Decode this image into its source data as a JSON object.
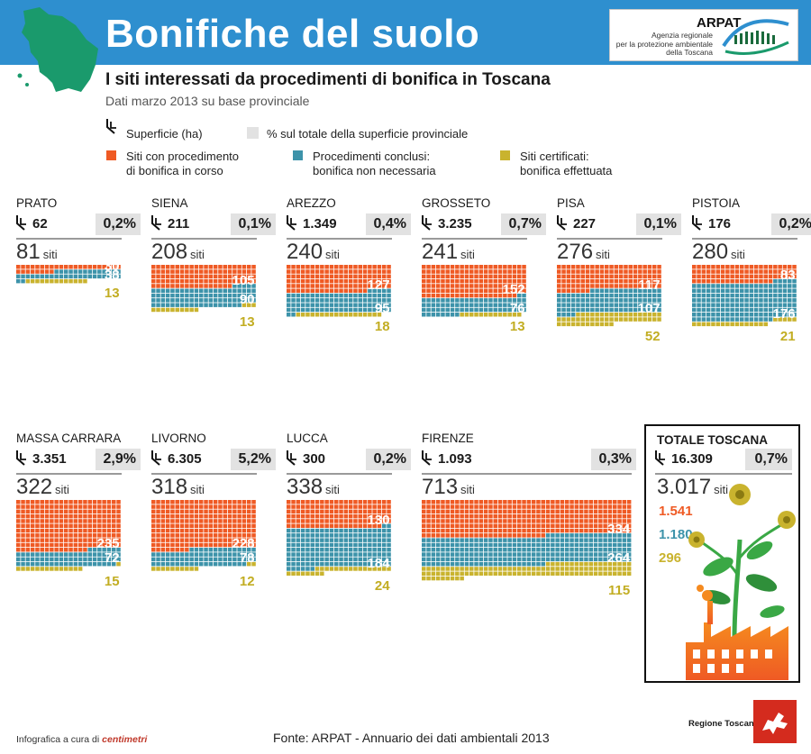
{
  "title": "Bonifiche del suolo",
  "subtitle": "I siti interessati da procedimenti di bonifica in Toscana",
  "subnote": "Dati marzo 2013 su base provinciale",
  "logo": {
    "name": "ARPAT",
    "sub1": "Agenzia regionale",
    "sub2": "per la protezione ambientale",
    "sub3": "della Toscana"
  },
  "legend": {
    "area": "Superficie (ha)",
    "pct": "% sul totale della superficie provinciale",
    "corso_1": "Siti con procedimento",
    "corso_2": "di bonifica in corso",
    "conclusi_1": "Procedimenti conclusi:",
    "conclusi_2": "bonifica non necessaria",
    "cert_1": "Siti certificati:",
    "cert_2": "bonifica effettuata"
  },
  "siti_unit": "siti",
  "colors": {
    "corso": "#ef5a24",
    "conclusi": "#3d93aa",
    "certificati": "#c9b32e",
    "header": "#2e8fcf"
  },
  "chart_data": {
    "type": "bar",
    "title": "I siti interessati da procedimenti di bonifica in Toscana",
    "series_names": [
      "Siti con procedimento di bonifica in corso",
      "Procedimenti conclusi: bonifica non necessaria",
      "Siti certificati: bonifica effettuata"
    ],
    "provinces": [
      {
        "name": "PRATO",
        "area": "62",
        "pct": "0,2%",
        "siti": "81",
        "corso": 30,
        "conclusi": 38,
        "certificati": 13
      },
      {
        "name": "SIENA",
        "area": "211",
        "pct": "0,1%",
        "siti": "208",
        "corso": 105,
        "conclusi": 90,
        "certificati": 13
      },
      {
        "name": "AREZZO",
        "area": "1.349",
        "pct": "0,4%",
        "siti": "240",
        "corso": 127,
        "conclusi": 95,
        "certificati": 18
      },
      {
        "name": "GROSSETO",
        "area": "3.235",
        "pct": "0,7%",
        "siti": "241",
        "corso": 152,
        "conclusi": 76,
        "certificati": 13
      },
      {
        "name": "PISA",
        "area": "227",
        "pct": "0,1%",
        "siti": "276",
        "corso": 117,
        "conclusi": 107,
        "certificati": 52
      },
      {
        "name": "PISTOIA",
        "area": "176",
        "pct": "0,2%",
        "siti": "280",
        "corso": 83,
        "conclusi": 176,
        "certificati": 21
      },
      {
        "name": "MASSA CARRARA",
        "area": "3.351",
        "pct": "2,9%",
        "siti": "322",
        "corso": 235,
        "conclusi": 72,
        "certificati": 15
      },
      {
        "name": "LIVORNO",
        "area": "6.305",
        "pct": "5,2%",
        "siti": "318",
        "corso": 228,
        "conclusi": 78,
        "certificati": 12
      },
      {
        "name": "LUCCA",
        "area": "300",
        "pct": "0,2%",
        "siti": "338",
        "corso": 130,
        "conclusi": 184,
        "certificati": 24
      },
      {
        "name": "FIRENZE",
        "area": "1.093",
        "pct": "0,3%",
        "siti": "713",
        "corso": 334,
        "conclusi": 264,
        "certificati": 115
      }
    ],
    "total": {
      "name": "TOTALE TOSCANA",
      "area": "16.309",
      "pct": "0,7%",
      "siti": "3.017",
      "corso": "1.541",
      "conclusi": "1.180",
      "certificati": "296"
    }
  },
  "footer": {
    "credit": "Infografica a cura di",
    "credit_brand": "centimetri",
    "source": "Fonte: ARPAT - Annuario dei dati ambientali 2013",
    "region": "Regione Toscana"
  }
}
